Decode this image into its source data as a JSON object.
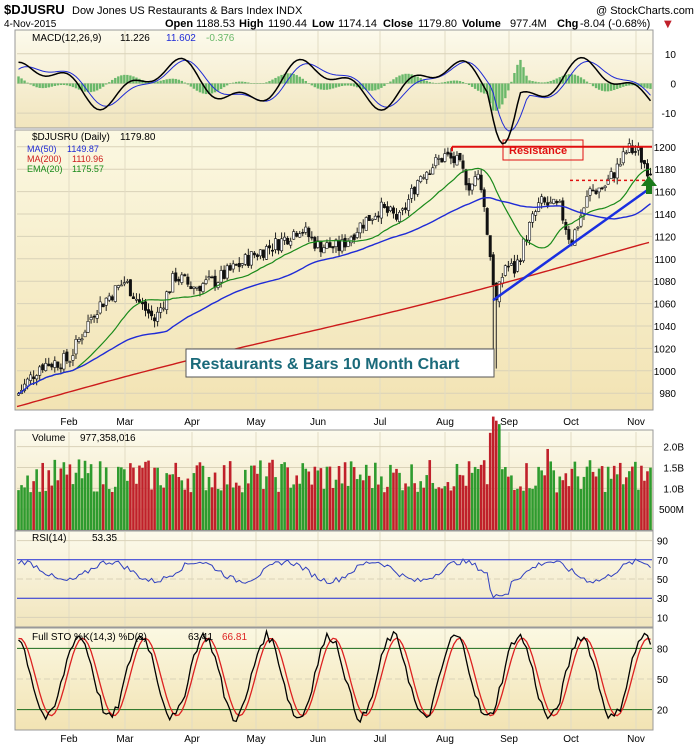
{
  "header": {
    "symbol": "$DJUSRU",
    "description": "Dow Jones US Restaurants & Bars Index",
    "exchange": "INDX",
    "copyright": "@ StockCharts.com",
    "date": "4-Nov-2015",
    "open_label": "Open",
    "open": "1188.53",
    "high_label": "High",
    "high": "1190.44",
    "low_label": "Low",
    "low": "1174.14",
    "close_label": "Close",
    "close": "1179.80",
    "volume_label": "Volume",
    "volume": "977.4M",
    "chg_label": "Chg",
    "chg": "-8.04 (-0.68%)",
    "chg_arrow": "▼"
  },
  "panels": {
    "macd": {
      "label": "MACD(12,26,9)",
      "v1": "11.226",
      "v2": "11.602",
      "v3": "-0.376",
      "ticks": [
        "10",
        "0",
        "-10"
      ]
    },
    "price": {
      "label": "$DJUSRU (Daily)",
      "last": "1179.80",
      "ma50_label": "MA(50)",
      "ma50": "1149.87",
      "ma200_label": "MA(200)",
      "ma200": "1110.96",
      "ema20_label": "EMA(20)",
      "ema20": "1175.57",
      "ticks": [
        "1200",
        "1180",
        "1160",
        "1140",
        "1120",
        "1100",
        "1080",
        "1060",
        "1040",
        "1020",
        "1000",
        "980"
      ],
      "annotation_resistance": "Resistance",
      "annotation_title": "Restaurants & Bars 10 Month Chart"
    },
    "volume": {
      "label": "Volume",
      "value": "977,358,016",
      "ticks": [
        "2.0B",
        "1.5B",
        "1.0B",
        "500M"
      ]
    },
    "rsi": {
      "label": "RSI(14)",
      "value": "53.35",
      "ticks": [
        "90",
        "70",
        "50",
        "30",
        "10"
      ]
    },
    "sto": {
      "label": "Full STO %K(14,3) %D(3)",
      "k": "63.41",
      "d": "66.81",
      "ticks": [
        "80",
        "50",
        "20"
      ]
    }
  },
  "x_axis_months": [
    "Feb",
    "Mar",
    "Apr",
    "May",
    "Jun",
    "Jul",
    "Aug",
    "Sep",
    "Oct",
    "Nov"
  ],
  "colors": {
    "price_bg_top": "#fbf8e2",
    "price_bg_bottom": "#f2e3b3",
    "up": "#2e9b2e",
    "down": "#c0202a",
    "ma50": "#1f2bd6",
    "ma200": "#cc1b1b",
    "ema20": "#1a8a1a",
    "trendline": "#1a2fe0",
    "resistance": "#e01010",
    "macd_hist": "#6ab86a",
    "sto_d": "#dd2222"
  },
  "chart_data": {
    "type": "line",
    "title": "$DJUSRU Dow Jones US Restaurants & Bars Index INDX",
    "xlabel": "",
    "ylabel": "",
    "x_range": [
      "Jan 2015",
      "4-Nov-2015"
    ],
    "price_ylim": [
      965,
      1215
    ],
    "series": [
      {
        "name": "$DJUSRU (Daily)",
        "points_month_value": [
          [
            "Jan",
            978
          ],
          [
            "Feb",
            1000
          ],
          [
            "Feb",
            1025
          ],
          [
            "Mar",
            1075
          ],
          [
            "Mar",
            1055
          ],
          [
            "Apr",
            1080
          ],
          [
            "Apr",
            1082
          ],
          [
            "May",
            1090
          ],
          [
            "May",
            1105
          ],
          [
            "Jun",
            1118
          ],
          [
            "Jun",
            1110
          ],
          [
            "Jul",
            1140
          ],
          [
            "Jul",
            1150
          ],
          [
            "Aug",
            1190
          ],
          [
            "Aug",
            1185
          ],
          [
            "Aug",
            1060
          ],
          [
            "Sep",
            1112
          ],
          [
            "Sep",
            1140
          ],
          [
            "Oct",
            1150
          ],
          [
            "Oct",
            1185
          ],
          [
            "Nov",
            1200
          ],
          [
            "Nov",
            1179.8
          ]
        ]
      },
      {
        "name": "MA(50)",
        "last": 1149.87
      },
      {
        "name": "MA(200)",
        "last": 1110.96
      },
      {
        "name": "EMA(20)",
        "last": 1175.57
      }
    ],
    "annotations": [
      "Resistance",
      "Restaurants & Bars 10 Month Chart"
    ]
  }
}
